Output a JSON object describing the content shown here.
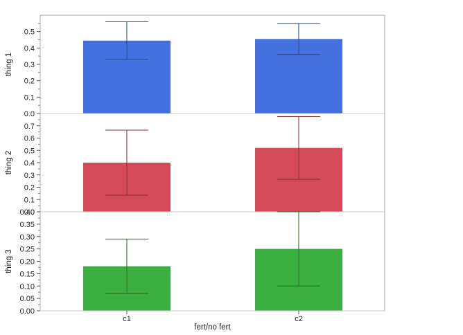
{
  "chart_data": {
    "type": "bar",
    "categories": [
      "c1",
      "c2"
    ],
    "xlabel": "fert/no fert",
    "grid": false,
    "panels": [
      {
        "ylabel": "thing 1",
        "color": "#4470E0",
        "ylim": [
          0,
          0.6
        ],
        "ticks": [
          "0.0",
          "0.1",
          "0.2",
          "0.3",
          "0.4",
          "0.5"
        ],
        "values": [
          0.445,
          0.455
        ],
        "error_low": [
          0.33,
          0.36
        ],
        "error_high": [
          0.56,
          0.55
        ]
      },
      {
        "ylabel": "thing 2",
        "color": "#D44A58",
        "ylim": [
          0,
          0.8
        ],
        "ticks": [
          "0.0",
          "0.1",
          "0.2",
          "0.3",
          "0.4",
          "0.5",
          "0.6",
          "0.7"
        ],
        "values": [
          0.4,
          0.52
        ],
        "error_low": [
          0.135,
          0.265
        ],
        "error_high": [
          0.665,
          0.775
        ]
      },
      {
        "ylabel": "thing 3",
        "color": "#3BAF3F",
        "ylim": [
          0,
          0.4
        ],
        "ticks": [
          "0.00",
          "0.05",
          "0.10",
          "0.15",
          "0.20",
          "0.25",
          "0.30",
          "0.35",
          "0.40"
        ],
        "values": [
          0.18,
          0.25
        ],
        "error_low": [
          0.07,
          0.1
        ],
        "error_high": [
          0.29,
          0.4
        ]
      }
    ]
  }
}
